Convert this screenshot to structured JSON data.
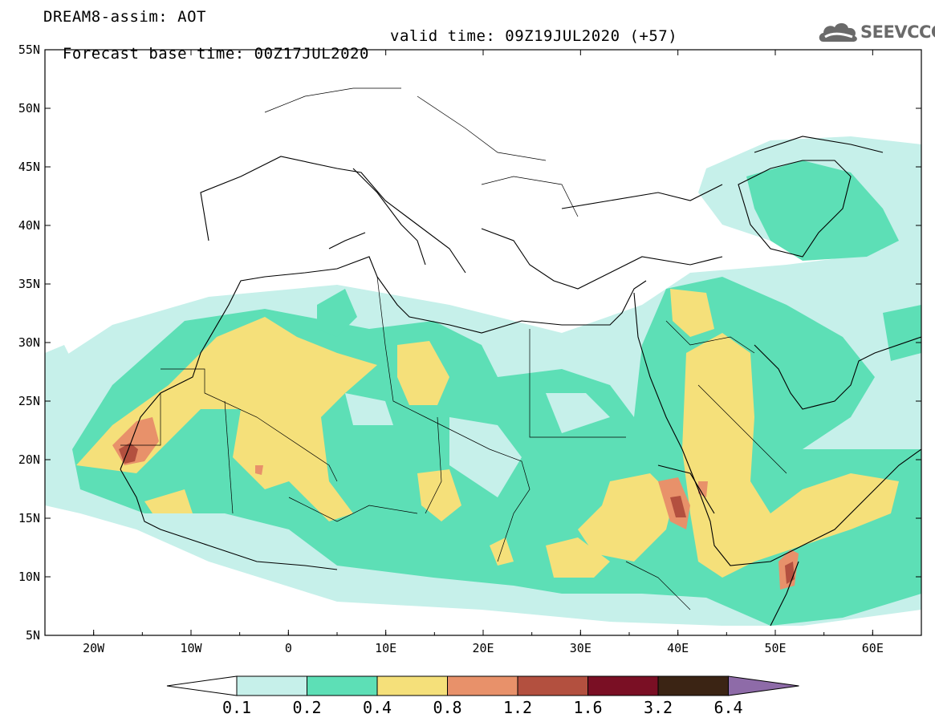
{
  "header": {
    "model_line": "DREAM8-assim: AOT",
    "base_time_line": "Forecast base time: 00Z17JUL2020",
    "valid_time_line": "valid time: 09Z19JUL2020 (+57)"
  },
  "logo": {
    "text": "SEEVCCC",
    "icon": "cloud-icon"
  },
  "map": {
    "lon_range": [
      -25,
      65
    ],
    "lat_range": [
      5,
      55
    ],
    "lon_ticks": [
      "20W",
      "10W",
      "0",
      "10E",
      "20E",
      "30E",
      "40E",
      "50E",
      "60E"
    ],
    "lat_ticks": [
      "55N",
      "50N",
      "45N",
      "40N",
      "35N",
      "30N",
      "25N",
      "20N",
      "15N",
      "10N",
      "5N"
    ]
  },
  "colorbar": {
    "labels": [
      "0.1",
      "0.2",
      "0.4",
      "0.8",
      "1.2",
      "1.6",
      "3.2",
      "6.4"
    ],
    "colors": [
      "#c6f0ea",
      "#5ddfb6",
      "#f5e07a",
      "#e8916a",
      "#b3503f",
      "#7a0f24",
      "#3b2414",
      "#8e6ba8"
    ],
    "colors_note": "bins 0.1-0.2, 0.2-0.4, 0.4-0.8, 0.8-1.2, 1.2-1.6, 1.6-3.2, 3.2-6.4, >6.4"
  }
}
